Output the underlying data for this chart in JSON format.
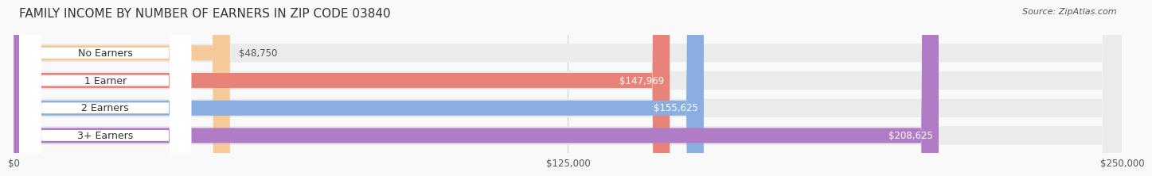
{
  "title": "FAMILY INCOME BY NUMBER OF EARNERS IN ZIP CODE 03840",
  "source": "Source: ZipAtlas.com",
  "categories": [
    "No Earners",
    "1 Earner",
    "2 Earners",
    "3+ Earners"
  ],
  "values": [
    48750,
    147969,
    155625,
    208625
  ],
  "bar_colors": [
    "#f5c999",
    "#e8837a",
    "#8aaee0",
    "#b07cc6"
  ],
  "track_color": "#ebebeb",
  "label_box_color": "#ffffff",
  "max_value": 250000,
  "x_ticks": [
    0,
    125000,
    250000
  ],
  "x_tick_labels": [
    "$0",
    "$125,000",
    "$250,000"
  ],
  "bar_height": 0.55,
  "background_color": "#f9f9f9",
  "title_fontsize": 11,
  "source_fontsize": 8,
  "label_fontsize": 9,
  "value_fontsize": 8.5
}
